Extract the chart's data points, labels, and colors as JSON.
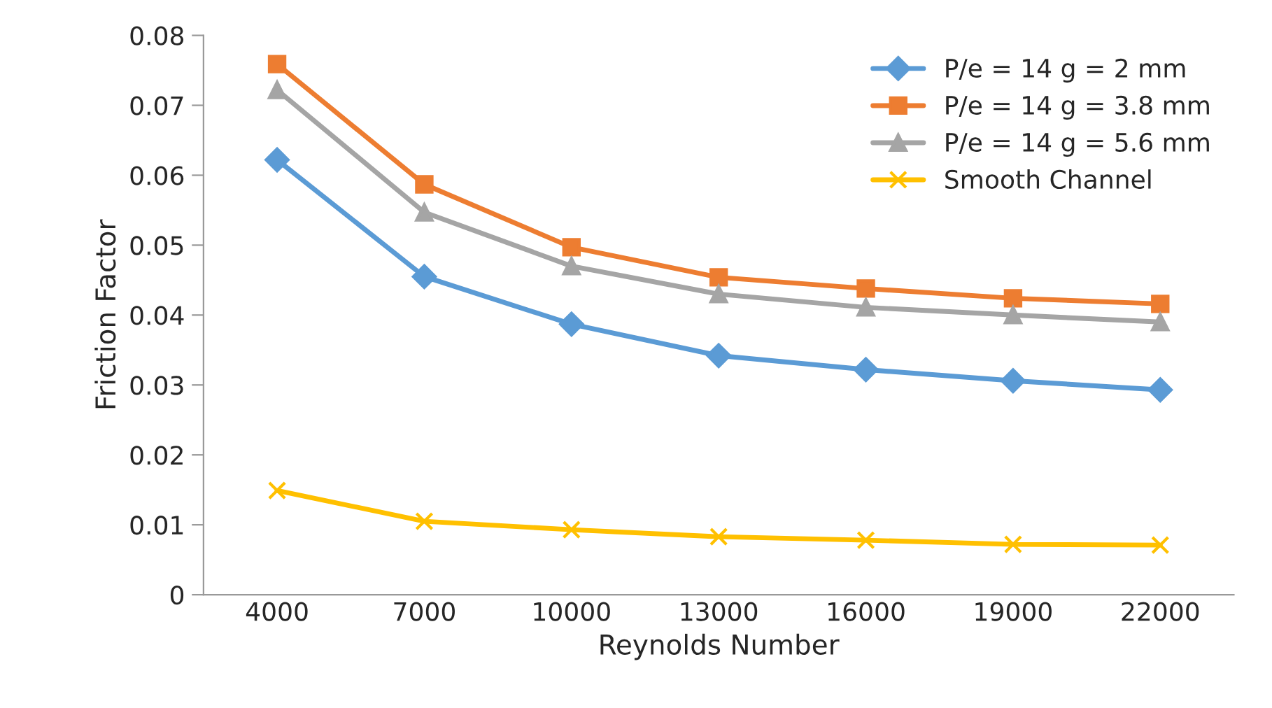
{
  "chart_data": {
    "type": "line",
    "xlabel": "Reynolds Number",
    "ylabel": "Friction Factor",
    "categories": [
      "4000",
      "7000",
      "10000",
      "13000",
      "16000",
      "19000",
      "22000"
    ],
    "series": [
      {
        "name": "P/e = 14 g = 2 mm",
        "color": "#5b9bd5",
        "marker": "diamond",
        "values": [
          0.0622,
          0.0455,
          0.0387,
          0.0342,
          0.0322,
          0.0306,
          0.0293
        ]
      },
      {
        "name": "P/e = 14 g = 3.8 mm",
        "color": "#ed7d31",
        "marker": "square",
        "values": [
          0.0759,
          0.0587,
          0.0497,
          0.0454,
          0.0438,
          0.0424,
          0.0416
        ]
      },
      {
        "name": "P/e = 14 g = 5.6 mm",
        "color": "#a5a5a5",
        "marker": "triangle",
        "values": [
          0.0722,
          0.0547,
          0.047,
          0.043,
          0.0411,
          0.04,
          0.039
        ]
      },
      {
        "name": "Smooth Channel",
        "color": "#ffc000",
        "marker": "cross",
        "values": [
          0.0149,
          0.0105,
          0.0093,
          0.0083,
          0.0078,
          0.0072,
          0.0071
        ]
      }
    ],
    "ylim": [
      0,
      0.08
    ],
    "yticks": [
      0,
      0.01,
      0.02,
      0.03,
      0.04,
      0.05,
      0.06,
      0.07,
      0.08
    ],
    "grid": false,
    "legend": "top right",
    "line_style": "solid"
  }
}
